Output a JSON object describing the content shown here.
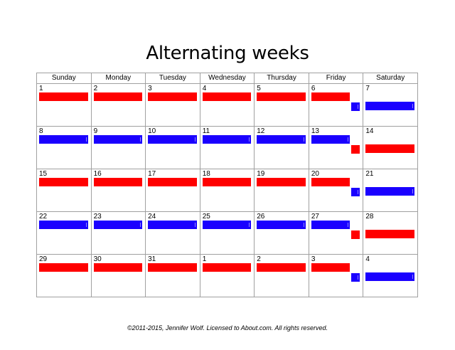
{
  "title": "Alternating weeks",
  "days": [
    "Sunday",
    "Monday",
    "Tuesday",
    "Wednesday",
    "Thursday",
    "Friday",
    "Saturday"
  ],
  "weeks": [
    [
      "1",
      "2",
      "3",
      "4",
      "5",
      "6",
      "7"
    ],
    [
      "8",
      "9",
      "10",
      "11",
      "12",
      "13",
      "14"
    ],
    [
      "15",
      "16",
      "17",
      "18",
      "19",
      "20",
      "21"
    ],
    [
      "22",
      "23",
      "24",
      "25",
      "26",
      "27",
      "28"
    ],
    [
      "29",
      "30",
      "31",
      "1",
      "2",
      "3",
      "4"
    ]
  ],
  "week_colors": [
    "red",
    "blue",
    "red",
    "blue",
    "red"
  ],
  "colors": {
    "red": "#ff0000",
    "blue": "#1a00ff"
  },
  "footer": "©2011-2015, Jennifer Wolf. Licensed to About.com. All rights reserved."
}
